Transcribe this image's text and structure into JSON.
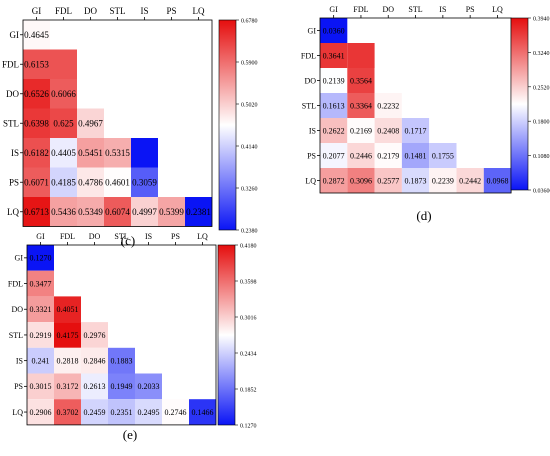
{
  "chart_data": [
    {
      "type": "heatmap",
      "panel_label": "(c)",
      "labels": [
        "GI",
        "FDL",
        "DO",
        "STL",
        "IS",
        "PS",
        "LQ"
      ],
      "matrix": [
        [
          0.4645
        ],
        [
          0.6153,
          0.6153
        ],
        [
          0.6526,
          0.6066,
          null
        ],
        [
          0.6398,
          0.625,
          0.4967,
          null
        ],
        [
          0.6182,
          0.4405,
          0.5451,
          0.5315,
          0.238
        ],
        [
          0.6071,
          0.4185,
          0.4786,
          0.4601,
          0.3059,
          null
        ],
        [
          0.6713,
          0.5436,
          0.5349,
          0.6074,
          0.4997,
          0.5399,
          0.2381
        ]
      ],
      "cell_text": [
        [
          "0.4645"
        ],
        [
          "0.6153",
          ""
        ],
        [
          "0.6526",
          "0.6066",
          ""
        ],
        [
          "0.6398",
          "0.625",
          "0.4967",
          ""
        ],
        [
          "0.6182",
          "0.4405",
          "0.5451",
          "0.5315",
          ""
        ],
        [
          "0.6071",
          "0.4185",
          "0.4786",
          "0.4601",
          "0.3059",
          ""
        ],
        [
          "0.6713",
          "0.5436",
          "0.5349",
          "0.6074",
          "0.4997",
          "0.5399",
          "0.2381"
        ]
      ],
      "colorbar": {
        "min": 0.238,
        "max": 0.678,
        "ticks": [
          "0.6780",
          "0.5900",
          "0.5020",
          "0.4140",
          "0.3260",
          "0.2380"
        ]
      }
    },
    {
      "type": "heatmap",
      "panel_label": "(d)",
      "labels": [
        "GI",
        "FDL",
        "DO",
        "STL",
        "IS",
        "PS",
        "LQ"
      ],
      "matrix": [
        [
          0.036
        ],
        [
          0.3641,
          0.3641
        ],
        [
          0.2139,
          0.3564,
          null
        ],
        [
          0.1613,
          0.3364,
          0.2232,
          null
        ],
        [
          0.2622,
          0.2169,
          0.2408,
          0.1717,
          null
        ],
        [
          0.2077,
          0.2446,
          0.2179,
          0.1481,
          0.1755,
          null
        ],
        [
          0.2872,
          0.3096,
          0.2577,
          0.1873,
          0.2239,
          0.2442,
          0.0968
        ]
      ],
      "cell_text": [
        [
          "0.0360"
        ],
        [
          "0.3641",
          ""
        ],
        [
          "0.2139",
          "0.3564",
          ""
        ],
        [
          "0.1613",
          "0.3364",
          "0.2232",
          ""
        ],
        [
          "0.2622",
          "0.2169",
          "0.2408",
          "0.1717",
          ""
        ],
        [
          "0.2077",
          "0.2446",
          "0.2179",
          "0.1481",
          "0.1755",
          ""
        ],
        [
          "0.2872",
          "0.3096",
          "0.2577",
          "0.1873",
          "0.2239",
          "0.2442",
          "0.0968"
        ]
      ],
      "colorbar": {
        "min": 0.036,
        "max": 0.394,
        "ticks": [
          "0.3940",
          "0.3240",
          "0.2520",
          "0.1800",
          "0.1080",
          "0.03600"
        ]
      }
    },
    {
      "type": "heatmap",
      "panel_label": "(e)",
      "labels": [
        "GI",
        "FDL",
        "DO",
        "STL",
        "IS",
        "PS",
        "LQ"
      ],
      "matrix": [
        [
          0.127
        ],
        [
          0.3477,
          null
        ],
        [
          0.3321,
          0.4051,
          null
        ],
        [
          0.2919,
          0.4175,
          0.2976,
          null
        ],
        [
          0.241,
          0.2818,
          0.2846,
          0.1883,
          null
        ],
        [
          0.3015,
          0.3172,
          0.2613,
          0.1949,
          0.2033,
          null
        ],
        [
          0.2906,
          0.3702,
          0.2459,
          0.2351,
          0.2495,
          0.2746,
          0.1466
        ]
      ],
      "cell_text": [
        [
          "0.1270"
        ],
        [
          "0.3477",
          ""
        ],
        [
          "0.3321",
          "0.4051",
          ""
        ],
        [
          "0.2919",
          "0.4175",
          "0.2976",
          ""
        ],
        [
          "0.241",
          "0.2818",
          "0.2846",
          "0.1883",
          ""
        ],
        [
          "0.3015",
          "0.3172",
          "0.2613",
          "0.1949",
          "0.2033",
          ""
        ],
        [
          "0.2906",
          "0.3702",
          "0.2459",
          "0.2351",
          "0.2495",
          "0.2746",
          "0.1466"
        ]
      ],
      "colorbar": {
        "min": 0.127,
        "max": 0.418,
        "ticks": [
          "0.4180",
          "0.3598",
          "0.3016",
          "0.2434",
          "0.1852",
          "0.1270"
        ]
      }
    }
  ]
}
